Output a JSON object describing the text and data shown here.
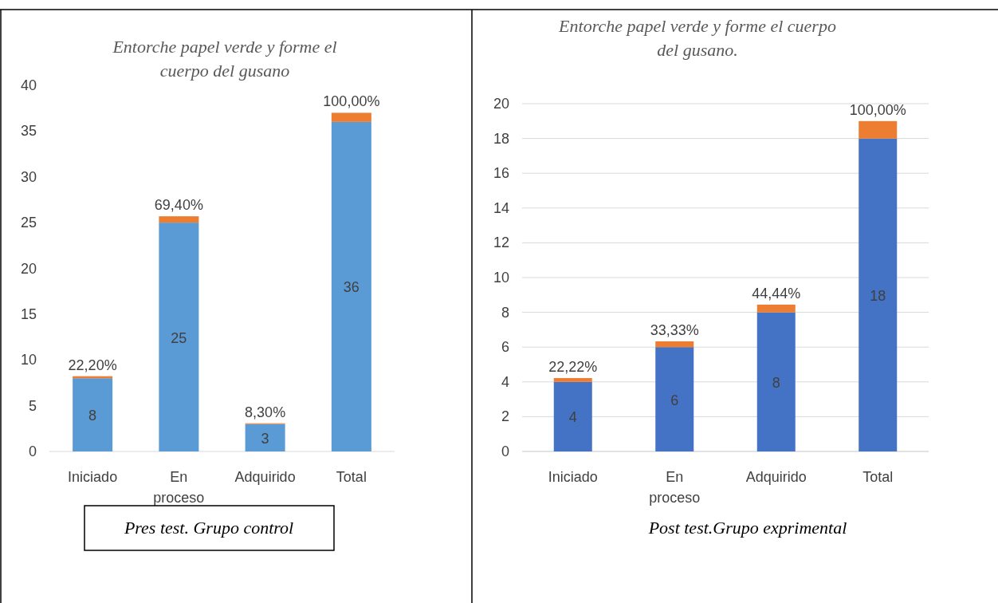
{
  "chart_data": [
    {
      "type": "bar",
      "title": "Entorche papel verde y forme el cuerpo del gusano",
      "categories": [
        "Iniciado",
        "En proceso",
        "Adquirido",
        "Total"
      ],
      "stacked": true,
      "series": [
        {
          "color": "#5b9bd5",
          "values": [
            8,
            25,
            3,
            36
          ],
          "value_labels": [
            "8",
            "25",
            "3",
            "36"
          ]
        },
        {
          "color": "#ed7d31",
          "values": [
            0.222,
            0.694,
            0.083,
            1
          ],
          "value_labels": [
            "22,20%",
            "69,40%",
            "8,30%",
            "100,00%"
          ]
        }
      ],
      "ylim": [
        0,
        40
      ],
      "yticks": [
        0,
        5,
        10,
        15,
        20,
        25,
        30,
        35,
        40
      ],
      "grid": false,
      "annotations": [
        "Pres test. Grupo control"
      ]
    },
    {
      "type": "bar",
      "title": "Entorche papel verde y forme el cuerpo del gusano.",
      "categories": [
        "Iniciado",
        "En proceso",
        "Adquirido",
        "Total"
      ],
      "stacked": true,
      "series": [
        {
          "color": "#4472c4",
          "values": [
            4,
            6,
            8,
            18
          ],
          "value_labels": [
            "4",
            "6",
            "8",
            "18"
          ]
        },
        {
          "color": "#ed7d31",
          "values": [
            0.2222,
            0.3333,
            0.4444,
            1
          ],
          "value_labels": [
            "22,22%",
            "33,33%",
            "44,44%",
            "100,00%"
          ]
        }
      ],
      "ylim": [
        0,
        20
      ],
      "yticks": [
        0,
        2,
        4,
        6,
        8,
        10,
        12,
        14,
        16,
        18,
        20
      ],
      "grid": true,
      "annotations": [
        "Post test.Grupo exprimental"
      ]
    }
  ]
}
